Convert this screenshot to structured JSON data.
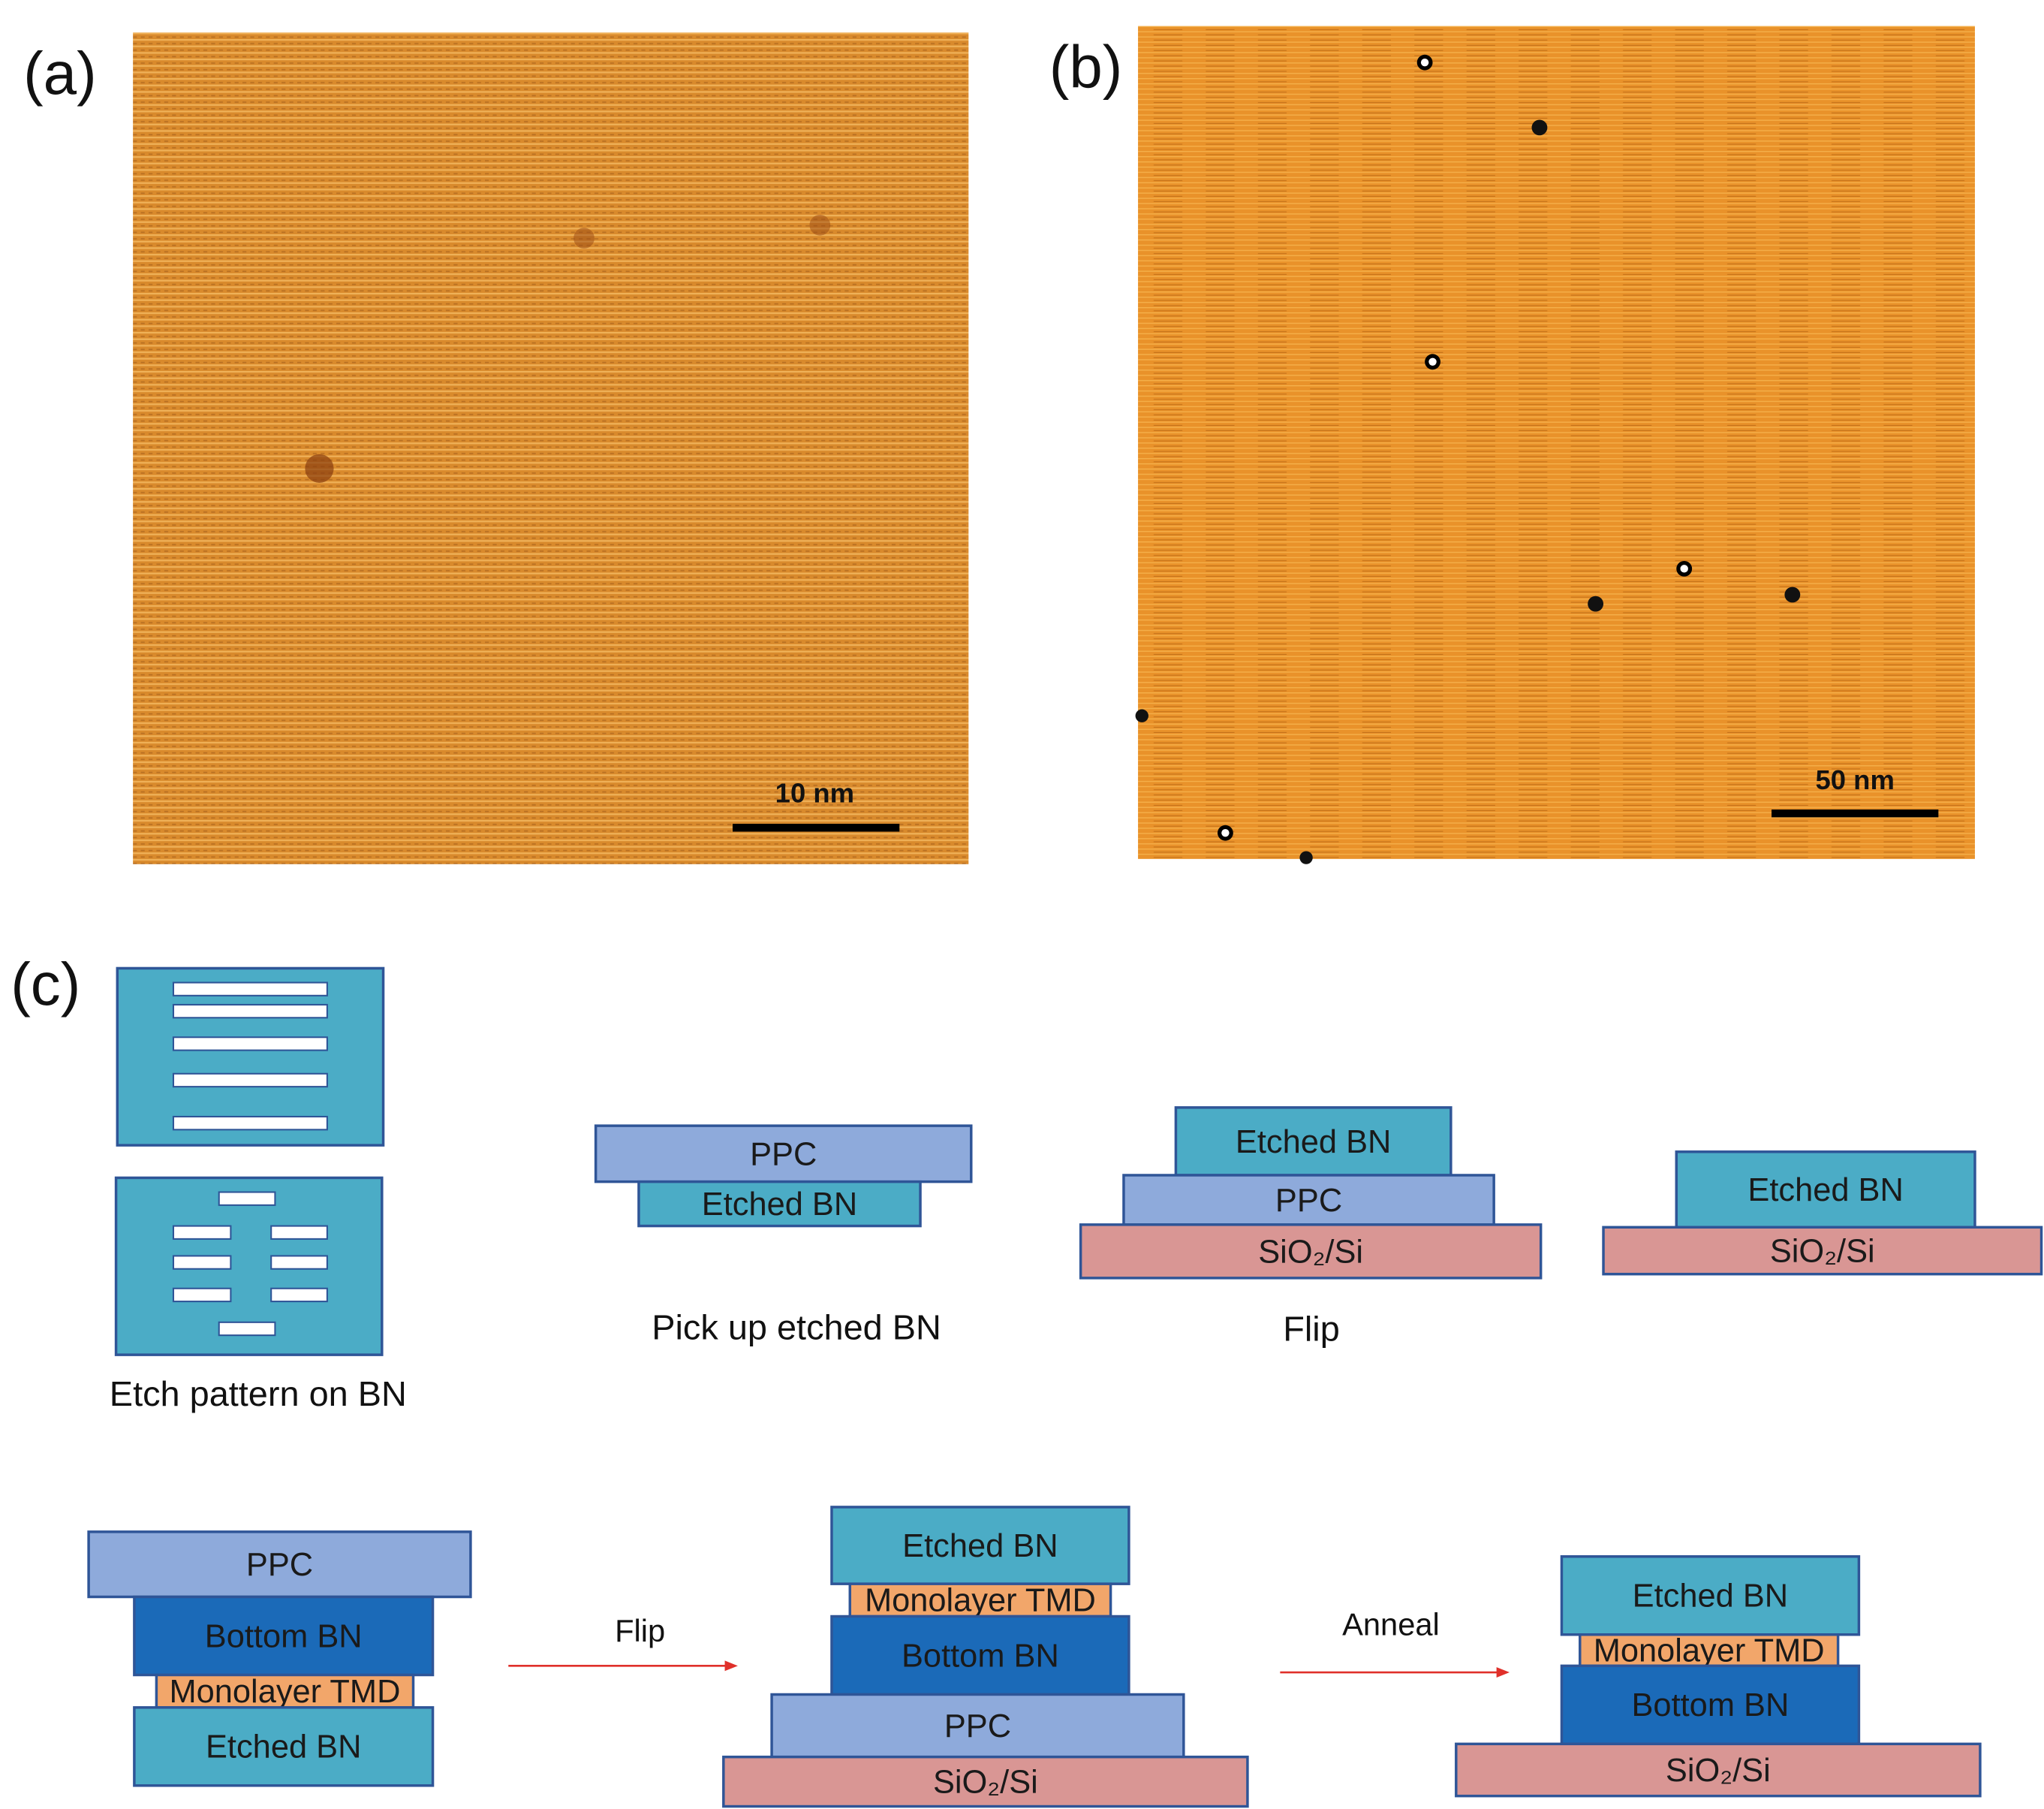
{
  "panels": {
    "a": {
      "label": "(a)",
      "scale_bar": "10 nm"
    },
    "b": {
      "label": "(b)",
      "scale_bar": "50 nm"
    },
    "c": {
      "label": "(c)",
      "steps": [
        {
          "caption": "Etch pattern on BN"
        },
        {
          "layers": [
            "PPC",
            "Etched BN"
          ],
          "caption": "Pick up etched BN"
        },
        {
          "layers": [
            "Etched BN",
            "PPC",
            "SiO₂/Si"
          ],
          "caption": "Flip"
        },
        {
          "layers": [
            "Etched BN",
            "SiO₂/Si"
          ]
        },
        {
          "layers": [
            "PPC",
            "Bottom BN",
            "Monolayer TMD",
            "Etched BN"
          ]
        },
        {
          "layers": [
            "Etched BN",
            "Monolayer TMD",
            "Bottom BN",
            "PPC",
            "SiO₂/Si"
          ]
        },
        {
          "layers": [
            "Etched BN",
            "Monolayer TMD",
            "Bottom BN",
            "SiO₂/Si"
          ]
        }
      ],
      "arrows": [
        "Flip",
        "Anneal"
      ]
    }
  }
}
